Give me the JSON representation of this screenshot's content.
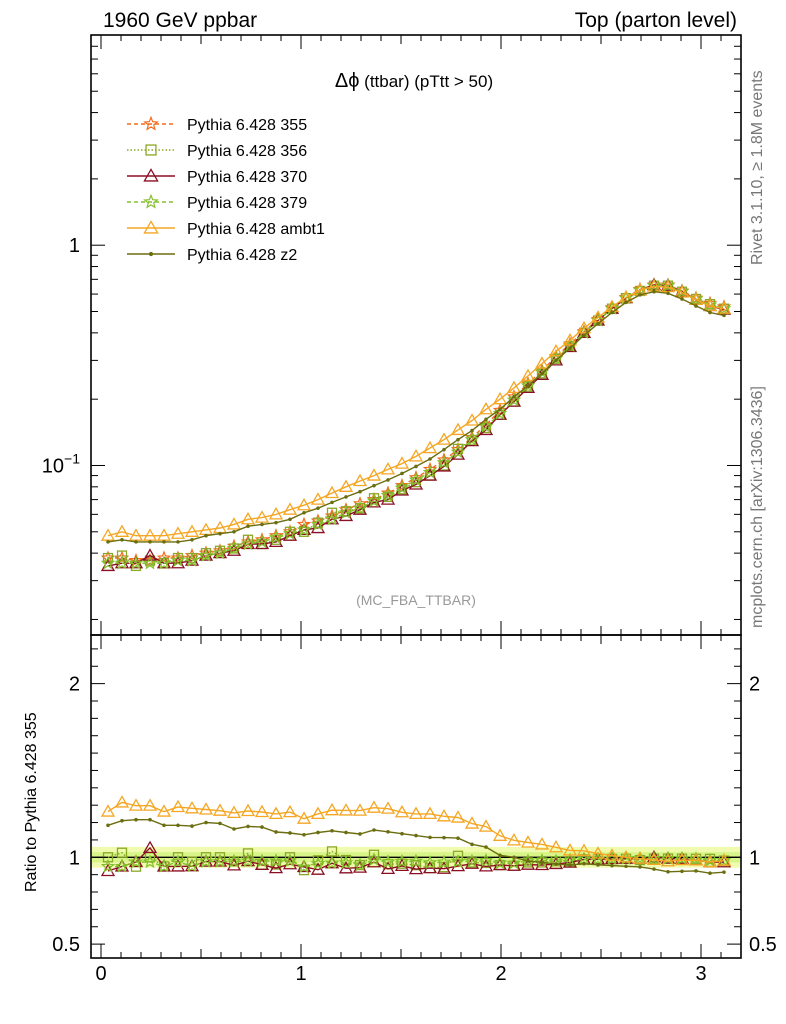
{
  "header": {
    "left": "1960 GeV ppbar",
    "right": "Top (parton level)"
  },
  "side_labels": {
    "rivet": "Rivet 3.1.10, ≥ 1.8M events",
    "source": "mcplots.cern.ch [arXiv:1306.3436]"
  },
  "chart_data": [
    {
      "type": "line",
      "title": "Δϕ (ttbar) (pTtt > 50)",
      "title_parts": {
        "symbol": "Δϕ",
        "text": " (ttbar) (pTtt > 50)"
      },
      "watermark": "(MC_FBA_TTBAR)",
      "xlim": [
        -0.05,
        3.2
      ],
      "ylim": [
        0.017,
        9
      ],
      "yscale": "log",
      "yticks": [
        {
          "value": 1,
          "label": "1"
        },
        {
          "value": 0.1,
          "label": "10",
          "sup": "−1"
        }
      ],
      "legend_position": "top-left",
      "x": [
        0.035,
        0.105,
        0.175,
        0.245,
        0.315,
        0.385,
        0.455,
        0.525,
        0.595,
        0.665,
        0.735,
        0.805,
        0.875,
        0.945,
        1.015,
        1.085,
        1.155,
        1.225,
        1.295,
        1.365,
        1.435,
        1.505,
        1.575,
        1.645,
        1.715,
        1.785,
        1.855,
        1.925,
        1.995,
        2.065,
        2.135,
        2.205,
        2.275,
        2.345,
        2.415,
        2.485,
        2.555,
        2.625,
        2.695,
        2.765,
        2.835,
        2.905,
        2.975,
        3.045,
        3.115
      ],
      "series": [
        {
          "name": "Pythia 6.428 355",
          "color": "#f26b1d",
          "dash": "4,3",
          "marker": "star",
          "values": [
            0.038,
            0.038,
            0.037,
            0.037,
            0.038,
            0.038,
            0.039,
            0.04,
            0.041,
            0.043,
            0.045,
            0.046,
            0.048,
            0.05,
            0.054,
            0.056,
            0.059,
            0.063,
            0.067,
            0.07,
            0.075,
            0.081,
            0.088,
            0.096,
            0.106,
            0.118,
            0.134,
            0.153,
            0.178,
            0.205,
            0.235,
            0.27,
            0.312,
            0.356,
            0.405,
            0.46,
            0.52,
            0.58,
            0.63,
            0.66,
            0.66,
            0.62,
            0.575,
            0.545,
            0.525
          ]
        },
        {
          "name": "Pythia 6.428 356",
          "color": "#8aa825",
          "dash": "1.5,2",
          "marker": "square",
          "values": [
            0.038,
            0.039,
            0.035,
            0.037,
            0.036,
            0.038,
            0.038,
            0.04,
            0.041,
            0.042,
            0.046,
            0.044,
            0.046,
            0.05,
            0.05,
            0.055,
            0.061,
            0.062,
            0.064,
            0.071,
            0.072,
            0.078,
            0.084,
            0.09,
            0.1,
            0.119,
            0.13,
            0.148,
            0.17,
            0.195,
            0.228,
            0.262,
            0.305,
            0.348,
            0.4,
            0.455,
            0.515,
            0.575,
            0.62,
            0.655,
            0.655,
            0.615,
            0.57,
            0.54,
            0.515
          ]
        },
        {
          "name": "Pythia 6.428 370",
          "color": "#8b0f24",
          "dash": "",
          "marker": "triangle-open",
          "values": [
            0.035,
            0.036,
            0.036,
            0.039,
            0.036,
            0.036,
            0.037,
            0.039,
            0.04,
            0.041,
            0.044,
            0.044,
            0.045,
            0.048,
            0.051,
            0.052,
            0.057,
            0.059,
            0.063,
            0.068,
            0.07,
            0.077,
            0.082,
            0.09,
            0.099,
            0.112,
            0.129,
            0.145,
            0.17,
            0.195,
            0.225,
            0.258,
            0.3,
            0.345,
            0.4,
            0.455,
            0.515,
            0.575,
            0.625,
            0.66,
            0.655,
            0.615,
            0.565,
            0.53,
            0.51
          ]
        },
        {
          "name": "Pythia 6.428 379",
          "color": "#84c02a",
          "dash": "4,3",
          "marker": "star",
          "values": [
            0.036,
            0.036,
            0.036,
            0.036,
            0.036,
            0.037,
            0.037,
            0.039,
            0.04,
            0.042,
            0.044,
            0.045,
            0.047,
            0.049,
            0.051,
            0.054,
            0.057,
            0.061,
            0.064,
            0.069,
            0.073,
            0.079,
            0.086,
            0.093,
            0.103,
            0.115,
            0.131,
            0.15,
            0.172,
            0.198,
            0.23,
            0.265,
            0.305,
            0.35,
            0.4,
            0.455,
            0.515,
            0.575,
            0.625,
            0.655,
            0.655,
            0.615,
            0.57,
            0.535,
            0.515
          ]
        },
        {
          "name": "Pythia 6.428 ambt1",
          "color": "#f5a623",
          "dash": "",
          "marker": "triangle-open",
          "values": [
            0.048,
            0.05,
            0.048,
            0.048,
            0.048,
            0.049,
            0.05,
            0.051,
            0.052,
            0.054,
            0.057,
            0.058,
            0.06,
            0.063,
            0.066,
            0.07,
            0.075,
            0.08,
            0.085,
            0.09,
            0.096,
            0.102,
            0.11,
            0.12,
            0.131,
            0.145,
            0.16,
            0.18,
            0.2,
            0.225,
            0.255,
            0.29,
            0.33,
            0.37,
            0.42,
            0.47,
            0.525,
            0.58,
            0.625,
            0.65,
            0.645,
            0.61,
            0.565,
            0.53,
            0.515
          ]
        },
        {
          "name": "Pythia 6.428 z2",
          "color": "#6b6e10",
          "dash": "",
          "marker": "dot",
          "values": [
            0.045,
            0.046,
            0.045,
            0.045,
            0.045,
            0.045,
            0.046,
            0.048,
            0.049,
            0.05,
            0.053,
            0.054,
            0.055,
            0.057,
            0.061,
            0.064,
            0.068,
            0.072,
            0.076,
            0.081,
            0.086,
            0.092,
            0.099,
            0.107,
            0.118,
            0.131,
            0.144,
            0.162,
            0.18,
            0.205,
            0.23,
            0.262,
            0.3,
            0.34,
            0.39,
            0.44,
            0.495,
            0.55,
            0.595,
            0.615,
            0.605,
            0.57,
            0.53,
            0.495,
            0.48
          ]
        }
      ]
    },
    {
      "type": "line",
      "ylabel": "Ratio to Pythia 6.428 355",
      "xlim": [
        -0.05,
        3.2
      ],
      "ylim": [
        0.42,
        2.28
      ],
      "yticks": [
        {
          "value": 0.5,
          "label": "0.5"
        },
        {
          "value": 1,
          "label": "1"
        },
        {
          "value": 2,
          "label": "2"
        }
      ],
      "xticks": [
        {
          "value": 0,
          "label": "0"
        },
        {
          "value": 1,
          "label": "1"
        },
        {
          "value": 2,
          "label": "2"
        },
        {
          "value": 3,
          "label": "3"
        }
      ],
      "band_inner": [
        0.97,
        1.03
      ],
      "band_outer": [
        0.94,
        1.06
      ],
      "band_inner_color": "#d8f58a",
      "band_outer_color": "#f1fbb0"
    }
  ]
}
